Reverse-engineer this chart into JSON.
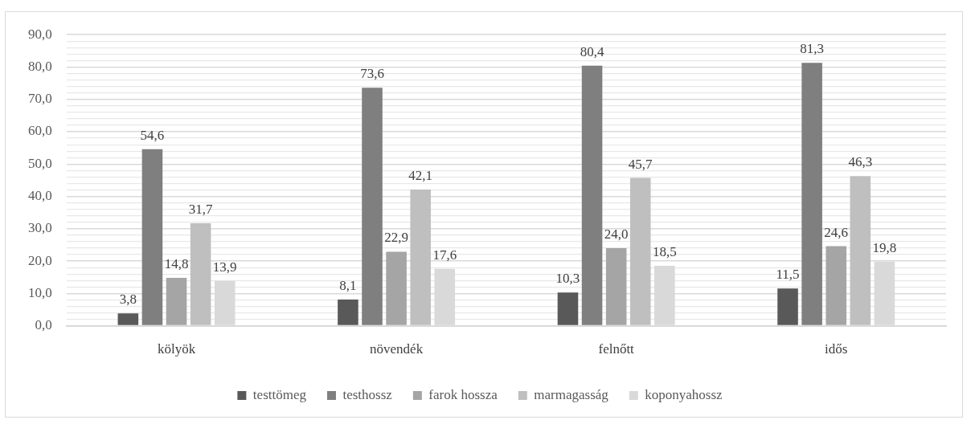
{
  "chart_data": {
    "type": "bar",
    "categories": [
      "kölyök",
      "növendék",
      "felnőtt",
      "idős"
    ],
    "series": [
      {
        "name": "testtömeg",
        "color": "#595959",
        "values": [
          3.8,
          8.1,
          10.3,
          11.5
        ],
        "value_labels": [
          "3,8",
          "8,1",
          "10,3",
          "11,5"
        ]
      },
      {
        "name": "testhossz",
        "color": "#7f7f7f",
        "values": [
          54.6,
          73.6,
          80.4,
          81.3
        ],
        "value_labels": [
          "54,6",
          "73,6",
          "80,4",
          "81,3"
        ]
      },
      {
        "name": "farok hossza",
        "color": "#a5a5a5",
        "values": [
          14.8,
          22.9,
          24.0,
          24.6
        ],
        "value_labels": [
          "14,8",
          "22,9",
          "24,0",
          "24,6"
        ]
      },
      {
        "name": "marmagasság",
        "color": "#bfbfbf",
        "values": [
          31.7,
          42.1,
          45.7,
          46.3
        ],
        "value_labels": [
          "31,7",
          "42,1",
          "45,7",
          "46,3"
        ]
      },
      {
        "name": "koponyahossz",
        "color": "#d9d9d9",
        "values": [
          13.9,
          17.6,
          18.5,
          19.8
        ],
        "value_labels": [
          "13,9",
          "17,6",
          "18,5",
          "19,8"
        ]
      }
    ],
    "ylim": [
      0,
      90
    ],
    "yticks": [
      {
        "value": 0,
        "label": "0,0"
      },
      {
        "value": 2,
        "label": null
      },
      {
        "value": 4,
        "label": null
      },
      {
        "value": 6,
        "label": null
      },
      {
        "value": 8,
        "label": null
      },
      {
        "value": 10,
        "label": "10,0"
      },
      {
        "value": 12,
        "label": null
      },
      {
        "value": 14,
        "label": null
      },
      {
        "value": 16,
        "label": null
      },
      {
        "value": 18,
        "label": null
      },
      {
        "value": 20,
        "label": "20,0"
      },
      {
        "value": 22,
        "label": null
      },
      {
        "value": 24,
        "label": null
      },
      {
        "value": 26,
        "label": null
      },
      {
        "value": 28,
        "label": null
      },
      {
        "value": 30,
        "label": "30,0"
      },
      {
        "value": 32,
        "label": null
      },
      {
        "value": 34,
        "label": null
      },
      {
        "value": 36,
        "label": null
      },
      {
        "value": 38,
        "label": null
      },
      {
        "value": 40,
        "label": "40,0"
      },
      {
        "value": 42,
        "label": null
      },
      {
        "value": 44,
        "label": null
      },
      {
        "value": 46,
        "label": null
      },
      {
        "value": 48,
        "label": null
      },
      {
        "value": 50,
        "label": "50,0"
      },
      {
        "value": 52,
        "label": null
      },
      {
        "value": 54,
        "label": null
      },
      {
        "value": 56,
        "label": null
      },
      {
        "value": 58,
        "label": null
      },
      {
        "value": 60,
        "label": "60,0"
      },
      {
        "value": 62,
        "label": null
      },
      {
        "value": 64,
        "label": null
      },
      {
        "value": 66,
        "label": null
      },
      {
        "value": 68,
        "label": null
      },
      {
        "value": 70,
        "label": "70,0"
      },
      {
        "value": 72,
        "label": null
      },
      {
        "value": 74,
        "label": null
      },
      {
        "value": 76,
        "label": null
      },
      {
        "value": 78,
        "label": null
      },
      {
        "value": 80,
        "label": "80,0"
      },
      {
        "value": 82,
        "label": null
      },
      {
        "value": 84,
        "label": null
      },
      {
        "value": 86,
        "label": null
      },
      {
        "value": 88,
        "label": null
      },
      {
        "value": 90,
        "label": "90,0"
      }
    ],
    "grid": "y",
    "legend": "bottom"
  }
}
